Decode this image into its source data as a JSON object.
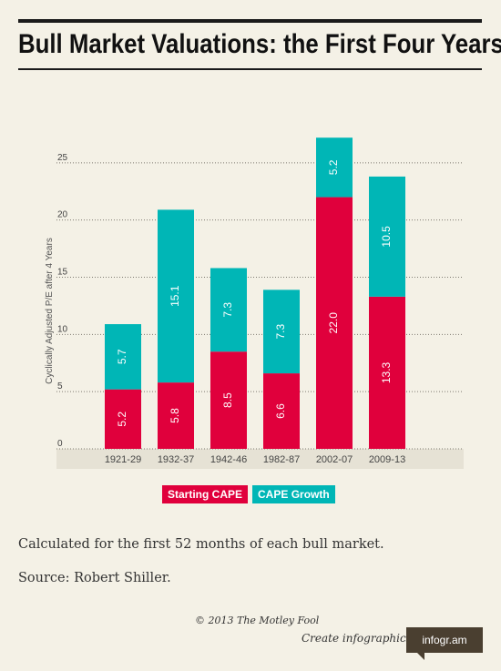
{
  "title": "Bull Market Valuations: the First Four Years",
  "colors": {
    "starting": "#e0003c",
    "growth": "#00b6b6",
    "background": "#f4f1e6"
  },
  "chart_data": {
    "type": "bar",
    "stacked": true,
    "categories": [
      "1921-29",
      "1932-37",
      "1942-46",
      "1982-87",
      "2002-07",
      "2009-13"
    ],
    "series": [
      {
        "name": "Starting CAPE",
        "values": [
          5.2,
          5.8,
          8.5,
          6.6,
          22.0,
          13.3
        ]
      },
      {
        "name": "CAPE Growth",
        "values": [
          5.7,
          15.1,
          7.3,
          7.3,
          5.2,
          10.5
        ]
      }
    ],
    "value_labels": [
      [
        "5.2",
        "5.8",
        "8.5",
        "6.6",
        "22.0",
        "13.3"
      ],
      [
        "5.7",
        "15.1",
        "7.3",
        "7.3",
        "5.2",
        "10.5"
      ]
    ],
    "ylabel": "Cyclically Adjusted P/E after 4 Years",
    "yticks": [
      "0",
      "5",
      "10",
      "15",
      "20",
      "25"
    ],
    "ylim": [
      0,
      25
    ],
    "grid": true,
    "legend_position": "bottom-center"
  },
  "legend": {
    "starting": "Starting CAPE",
    "growth": "CAPE Growth"
  },
  "notes": {
    "line1": "Calculated for the first 52 months of each bull market.",
    "line2": "Source: Robert Shiller."
  },
  "credit": "© 2013 The Motley Fool",
  "create_text": "Create infographics",
  "badge": "infogr.am"
}
